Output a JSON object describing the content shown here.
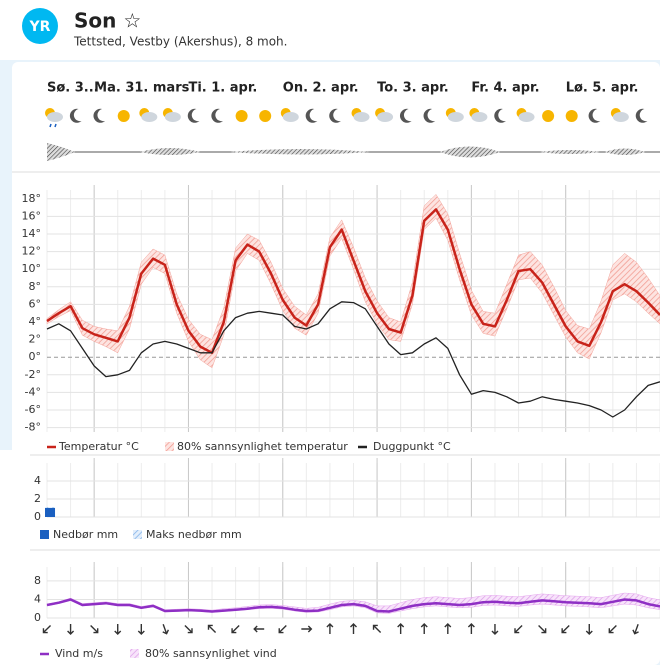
{
  "header": {
    "logo": "YR",
    "title": "Son ☆",
    "subtitle": "Tettsted, Vestby (Akershus), 8 moh."
  },
  "days": [
    "Sø. 3...",
    "Ma. 31. mars",
    "Ti. 1. apr.",
    "On. 2. apr.",
    "To. 3. apr.",
    "Fr. 4. apr.",
    "Lø. 5. apr."
  ],
  "chart_data": [
    {
      "type": "line",
      "ylim": [
        -8.5,
        19
      ],
      "yticks": [
        {
          "value": 18,
          "label": "18°"
        },
        {
          "value": 16,
          "label": "16°"
        },
        {
          "value": 14,
          "label": "14°"
        },
        {
          "value": 12,
          "label": "12°"
        },
        {
          "value": 10,
          "label": "10°"
        },
        {
          "value": 8,
          "label": "8°"
        },
        {
          "value": 6,
          "label": "6°"
        },
        {
          "value": 4,
          "label": "4°"
        },
        {
          "value": 2,
          "label": "2°"
        },
        {
          "value": 0,
          "label": "0°"
        },
        {
          "value": -2,
          "label": "-2°"
        },
        {
          "value": -4,
          "label": "-4°"
        },
        {
          "value": -6,
          "label": "-6°"
        },
        {
          "value": -8,
          "label": "-8°"
        }
      ],
      "series": [
        {
          "name": "Temperatur °C",
          "color": "#c8231a",
          "values": [
            4.1,
            5.0,
            5.8,
            3.3,
            2.6,
            2.2,
            1.8,
            4.5,
            9.5,
            11.2,
            10.5,
            6.0,
            3.0,
            1.2,
            0.5,
            4.0,
            11.0,
            12.8,
            12.0,
            9.5,
            6.5,
            4.5,
            3.6,
            6.0,
            12.5,
            14.5,
            11.0,
            7.5,
            5.0,
            3.2,
            2.8,
            7.0,
            15.5,
            16.8,
            14.5,
            10.0,
            6.0,
            3.8,
            3.5,
            6.5,
            9.8,
            10.0,
            8.5,
            6.0,
            3.5,
            1.8,
            1.3,
            4.0,
            7.5,
            8.3,
            7.5,
            6.2,
            4.8
          ]
        },
        {
          "name": "Duggpunkt °C",
          "color": "#222222",
          "values": [
            3.2,
            3.8,
            3.0,
            1.0,
            -1.0,
            -2.2,
            -2.0,
            -1.5,
            0.5,
            1.5,
            1.8,
            1.5,
            1.0,
            0.5,
            0.5,
            3.0,
            4.5,
            5.0,
            5.2,
            5.0,
            4.8,
            3.5,
            3.2,
            3.8,
            5.5,
            6.3,
            6.2,
            5.5,
            3.5,
            1.5,
            0.3,
            0.5,
            1.5,
            2.2,
            1.0,
            -2.0,
            -4.2,
            -3.8,
            -4.0,
            -4.5,
            -5.2,
            -5.0,
            -4.5,
            -4.8,
            -5.0,
            -5.2,
            -5.5,
            -6.0,
            -6.8,
            -6.0,
            -4.5,
            -3.2,
            -2.8
          ]
        }
      ],
      "band": {
        "name": "80% sannsynlighet temperatur",
        "color": "#f3a49b",
        "low": [
          3.8,
          4.6,
          5.3,
          2.5,
          1.8,
          1.2,
          0.5,
          3.2,
          8.3,
          10.2,
          9.5,
          5.0,
          1.8,
          -0.3,
          -1.2,
          2.5,
          9.8,
          11.8,
          11.0,
          8.3,
          5.3,
          3.3,
          2.5,
          5.0,
          11.5,
          13.5,
          10.0,
          6.3,
          3.8,
          2.0,
          1.8,
          6.0,
          14.5,
          15.8,
          13.3,
          8.8,
          4.8,
          2.7,
          2.4,
          5.5,
          8.8,
          9.0,
          7.3,
          4.8,
          2.3,
          0.5,
          -0.2,
          2.8,
          6.5,
          7.2,
          6.3,
          5.0,
          3.8
        ],
        "high": [
          4.4,
          5.4,
          6.3,
          4.2,
          3.5,
          3.2,
          3.0,
          5.8,
          10.8,
          12.3,
          11.6,
          7.2,
          4.3,
          2.6,
          2.0,
          5.6,
          12.4,
          14.0,
          13.3,
          10.8,
          7.8,
          5.8,
          4.8,
          7.2,
          13.6,
          15.6,
          12.5,
          9.0,
          6.4,
          4.5,
          4.0,
          8.5,
          17.2,
          18.5,
          16.3,
          11.8,
          7.6,
          5.2,
          5.0,
          8.3,
          11.6,
          12.0,
          10.5,
          8.0,
          5.3,
          3.6,
          3.2,
          6.4,
          10.5,
          11.8,
          10.8,
          9.0,
          7.0
        ]
      }
    },
    {
      "type": "bar",
      "ylim": [
        0,
        6
      ],
      "yticks": [
        0,
        2,
        4
      ],
      "series": [
        {
          "name": "Nedbør mm",
          "color": "#1a5fc0",
          "values": [
            1,
            0,
            0,
            0,
            0,
            0,
            0,
            0,
            0,
            0,
            0,
            0,
            0,
            0,
            0,
            0,
            0,
            0,
            0,
            0,
            0,
            0,
            0,
            0,
            0,
            0,
            0,
            0,
            0,
            0,
            0,
            0,
            0,
            0,
            0,
            0,
            0,
            0,
            0,
            0,
            0,
            0,
            0,
            0,
            0,
            0,
            0,
            0,
            0,
            0,
            0,
            0,
            0
          ]
        },
        {
          "name": "Maks nedbør mm",
          "color": "#8cb8ea",
          "values": [
            1.1,
            0,
            0,
            0,
            0,
            0,
            0,
            0,
            0,
            0,
            0,
            0,
            0,
            0,
            0,
            0,
            0,
            0,
            0,
            0,
            0,
            0,
            0,
            0,
            0,
            0,
            0,
            0,
            0,
            0,
            0,
            0,
            0,
            0,
            0,
            0,
            0,
            0,
            0,
            0,
            0,
            0,
            0,
            0,
            0,
            0,
            0,
            0,
            0,
            0,
            0,
            0,
            0
          ]
        }
      ]
    },
    {
      "type": "line",
      "ylim": [
        0,
        11
      ],
      "yticks": [
        0,
        4,
        8
      ],
      "series": [
        {
          "name": "Vind m/s",
          "color": "#8e2fc4",
          "values": [
            2.8,
            3.3,
            4.0,
            2.8,
            3.0,
            3.2,
            2.8,
            2.8,
            2.2,
            2.6,
            1.5,
            1.6,
            1.7,
            1.6,
            1.4,
            1.6,
            1.8,
            2.0,
            2.3,
            2.4,
            2.2,
            1.8,
            1.5,
            1.6,
            2.2,
            2.8,
            3.0,
            2.6,
            1.5,
            1.4,
            2.0,
            2.6,
            3.0,
            3.2,
            3.0,
            2.8,
            3.0,
            3.4,
            3.5,
            3.3,
            3.2,
            3.5,
            3.8,
            3.6,
            3.4,
            3.3,
            3.2,
            3.0,
            3.5,
            4.0,
            3.8,
            3.0,
            2.5
          ]
        }
      ],
      "band": {
        "name": "80% sannsynlighet vind",
        "color": "#e6a8ef",
        "low": [
          2.6,
          3.1,
          3.8,
          2.6,
          2.8,
          3.0,
          2.6,
          2.6,
          2.0,
          2.4,
          1.3,
          1.4,
          1.5,
          1.4,
          1.2,
          1.4,
          1.6,
          1.8,
          2.0,
          2.1,
          1.9,
          1.5,
          1.2,
          1.3,
          1.8,
          2.4,
          2.6,
          2.2,
          1.1,
          1.0,
          1.5,
          2.0,
          2.4,
          2.6,
          2.4,
          2.2,
          2.3,
          2.7,
          2.8,
          2.6,
          2.5,
          2.8,
          3.0,
          2.8,
          2.6,
          2.5,
          2.4,
          2.2,
          2.6,
          3.0,
          2.8,
          2.2,
          1.8
        ],
        "high": [
          3.0,
          3.5,
          4.3,
          3.1,
          3.3,
          3.5,
          3.1,
          3.1,
          2.5,
          2.9,
          1.8,
          1.9,
          2.0,
          1.9,
          1.7,
          2.0,
          2.2,
          2.5,
          2.8,
          2.9,
          2.7,
          2.4,
          2.1,
          2.3,
          3.0,
          3.6,
          3.8,
          3.5,
          2.6,
          2.6,
          3.3,
          4.0,
          4.4,
          4.6,
          4.4,
          4.2,
          4.4,
          4.8,
          4.9,
          4.7,
          4.6,
          4.9,
          5.2,
          5.0,
          4.8,
          4.7,
          4.6,
          4.4,
          4.9,
          5.4,
          5.2,
          4.4,
          3.9
        ]
      },
      "wind_direction": [
        225,
        180,
        135,
        180,
        180,
        160,
        135,
        315,
        225,
        270,
        225,
        90,
        0,
        0,
        315,
        0,
        0,
        0,
        0,
        180,
        225,
        135,
        225,
        180,
        225,
        200
      ]
    }
  ]
}
